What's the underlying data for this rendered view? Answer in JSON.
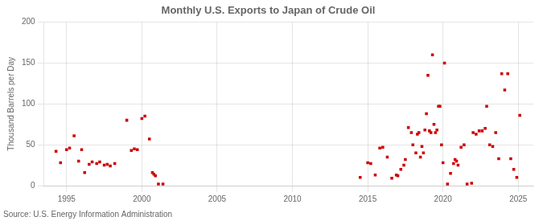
{
  "chart_data": {
    "type": "scatter",
    "title": "Monthly U.S. Exports to Japan of Crude Oil",
    "ylabel": "Thousand Barrels per Day",
    "annotation": "Source: U.S. Energy Information Administration",
    "x": [
      1994.3,
      1994.6,
      1995.0,
      1995.2,
      1995.5,
      1995.8,
      1996.0,
      1996.2,
      1996.5,
      1996.7,
      1997.0,
      1997.2,
      1997.5,
      1997.7,
      1997.9,
      1998.2,
      1999.0,
      1999.3,
      1999.5,
      1999.7,
      2000.0,
      2000.2,
      2000.5,
      2000.7,
      2000.8,
      2000.9,
      2001.1,
      2001.4,
      2014.5,
      2015.0,
      2015.2,
      2015.5,
      2015.8,
      2016.0,
      2016.3,
      2016.6,
      2016.9,
      2017.0,
      2017.2,
      2017.4,
      2017.5,
      2017.7,
      2017.9,
      2018.0,
      2018.2,
      2018.3,
      2018.4,
      2018.5,
      2018.6,
      2018.7,
      2018.8,
      2018.9,
      2019.0,
      2019.1,
      2019.2,
      2019.3,
      2019.4,
      2019.5,
      2019.6,
      2019.7,
      2019.8,
      2019.9,
      2020.0,
      2020.1,
      2020.3,
      2020.5,
      2020.7,
      2020.8,
      2020.9,
      2021.0,
      2021.2,
      2021.4,
      2021.6,
      2021.9,
      2022.0,
      2022.2,
      2022.4,
      2022.6,
      2022.8,
      2022.9,
      2023.1,
      2023.3,
      2023.5,
      2023.7,
      2023.9,
      2024.1,
      2024.3,
      2024.5,
      2024.7,
      2024.9,
      2025.1
    ],
    "values": [
      42,
      28,
      44,
      46,
      61,
      30,
      44,
      16,
      26,
      29,
      27,
      29,
      25,
      26,
      24,
      27,
      80,
      43,
      45,
      44,
      82,
      85,
      57,
      16,
      14,
      12,
      2,
      2,
      10,
      28,
      27,
      13,
      46,
      47,
      35,
      9,
      13,
      12,
      20,
      25,
      32,
      71,
      65,
      50,
      40,
      63,
      65,
      35,
      48,
      40,
      68,
      88,
      135,
      67,
      65,
      160,
      75,
      65,
      68,
      97,
      97,
      50,
      28,
      150,
      2,
      15,
      27,
      32,
      30,
      25,
      47,
      50,
      2,
      3,
      65,
      63,
      67,
      67,
      70,
      97,
      50,
      48,
      65,
      33,
      137,
      117,
      137,
      33,
      20,
      10,
      86
    ],
    "color": "#cc0000",
    "marker": "square",
    "xlim": [
      1993.5,
      2026
    ],
    "xticks": [
      1995,
      2000,
      2005,
      2010,
      2015,
      2020,
      2025
    ],
    "ylim": [
      0,
      200
    ],
    "yticks": [
      0,
      50,
      100,
      150,
      200
    ],
    "grid": true
  }
}
